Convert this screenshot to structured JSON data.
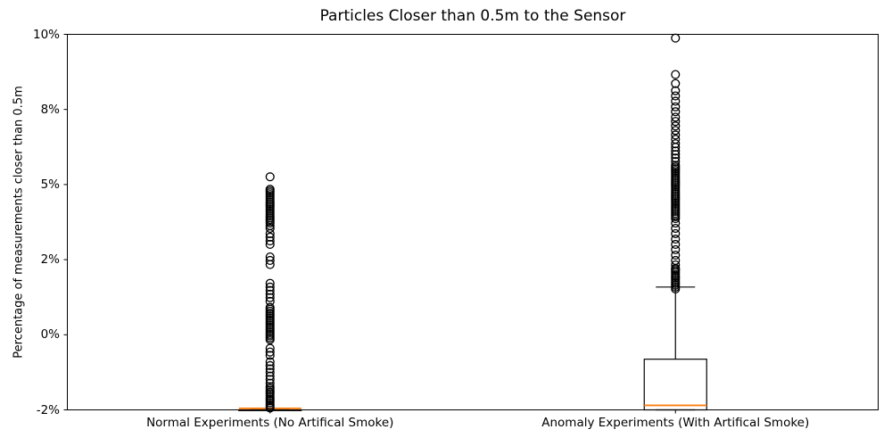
{
  "chart_data": {
    "type": "boxplot",
    "title": "Particles Closer than 0.5m to the Sensor",
    "ylabel": "Percentage of measurements closer than 0.5m",
    "xlabel": "",
    "grid": false,
    "legend": null,
    "y_ticks": [
      {
        "label": "10%",
        "value": 10
      },
      {
        "label": "8%",
        "value": 8
      },
      {
        "label": "5%",
        "value": 5
      },
      {
        "label": "2%",
        "value": 2
      },
      {
        "label": "0%",
        "value": 0
      },
      {
        "label": "-2%",
        "value": -2
      }
    ],
    "colors": {
      "median": "#ff7f0e",
      "box_edge": "#000000",
      "flier_edge": "#000000",
      "spine": "#000000"
    },
    "groups": [
      {
        "label": "Normal Experiments (No Artifical Smoke)",
        "position": 0.25,
        "stats": {
          "whisker_low": -2.0,
          "q1": -2.0,
          "median": -1.96,
          "q3": -2.0,
          "whisker_high": -2.0
        },
        "outliers": [
          5.31,
          4.81,
          4.74,
          4.67,
          4.6,
          4.53,
          4.46,
          4.39,
          4.31,
          4.24,
          4.17,
          4.1,
          4.03,
          3.96,
          3.89,
          3.82,
          3.74,
          3.67,
          3.6,
          3.53,
          3.46,
          3.36,
          3.25,
          3.04,
          2.9,
          2.75,
          2.61,
          2.11,
          1.98,
          1.87,
          1.37,
          1.27,
          1.18,
          1.08,
          0.99,
          0.89,
          0.73,
          0.68,
          0.63,
          0.58,
          0.54,
          0.49,
          0.44,
          0.39,
          0.35,
          0.3,
          0.25,
          0.2,
          0.16,
          0.11,
          0.06,
          0.01,
          -0.03,
          -0.08,
          -0.13,
          -0.36,
          -0.46,
          -0.55,
          -0.72,
          -0.82,
          -0.91,
          -1.0,
          -1.1,
          -1.19,
          -1.29,
          -1.38,
          -1.43,
          -1.48,
          -1.53,
          -1.57,
          -1.62,
          -1.67,
          -1.72,
          -1.76,
          -1.81,
          -1.86,
          -1.9,
          -1.95
        ]
      },
      {
        "label": "Anomaly Experiments (With Artifical Smoke)",
        "position": 0.75,
        "stats": {
          "whisker_low": -2.0,
          "q1": -2.0,
          "median": -1.88,
          "q3": -0.65,
          "whisker_high": 1.27
        },
        "outliers": [
          9.9,
          8.93,
          8.69,
          8.5,
          8.36,
          8.22,
          8.07,
          7.91,
          7.69,
          7.52,
          7.34,
          7.16,
          6.98,
          6.81,
          6.63,
          6.49,
          6.34,
          6.2,
          6.06,
          5.92,
          5.77,
          5.7,
          5.63,
          5.56,
          5.49,
          5.42,
          5.35,
          5.28,
          5.21,
          5.13,
          5.06,
          4.99,
          4.92,
          4.85,
          4.78,
          4.71,
          4.64,
          4.56,
          4.49,
          4.42,
          4.35,
          4.28,
          4.21,
          4.14,
          4.07,
          4.0,
          3.93,
          3.85,
          3.78,
          3.71,
          3.64,
          3.46,
          3.25,
          3.04,
          2.82,
          2.61,
          2.4,
          2.18,
          1.98,
          1.86,
          1.77,
          1.74,
          1.7,
          1.65,
          1.6,
          1.55,
          1.51,
          1.46,
          1.41,
          1.37,
          1.32,
          1.27,
          1.22
        ]
      }
    ]
  }
}
